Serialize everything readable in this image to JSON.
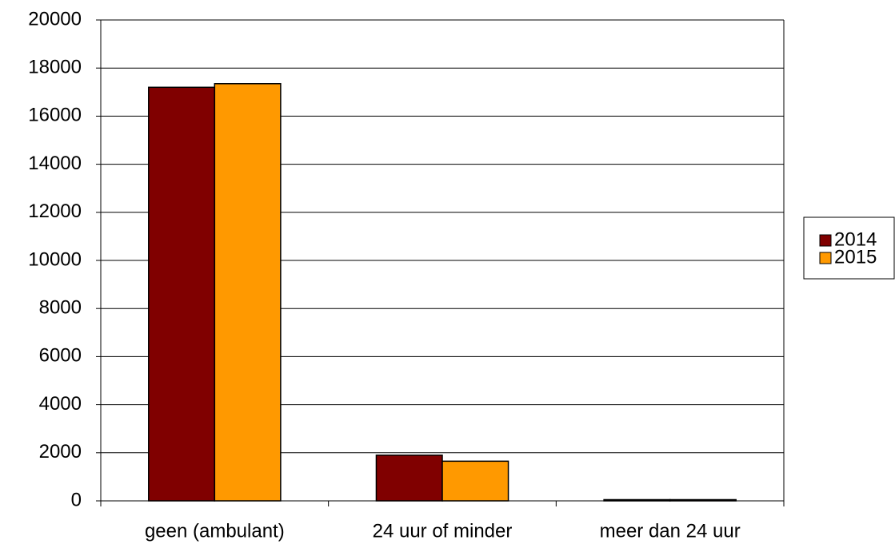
{
  "chart_data": {
    "type": "bar",
    "categories": [
      "geen (ambulant)",
      "24 uur of minder",
      "meer dan 24 uur"
    ],
    "series": [
      {
        "name": "2014",
        "color": "#800000",
        "values": [
          17200,
          1900,
          50
        ]
      },
      {
        "name": "2015",
        "color": "#ff9900",
        "values": [
          17350,
          1650,
          50
        ]
      }
    ],
    "ylim": [
      0,
      20000
    ],
    "yticks": [
      0,
      2000,
      4000,
      6000,
      8000,
      10000,
      12000,
      14000,
      16000,
      18000,
      20000
    ],
    "grid": true,
    "legend": "right"
  }
}
